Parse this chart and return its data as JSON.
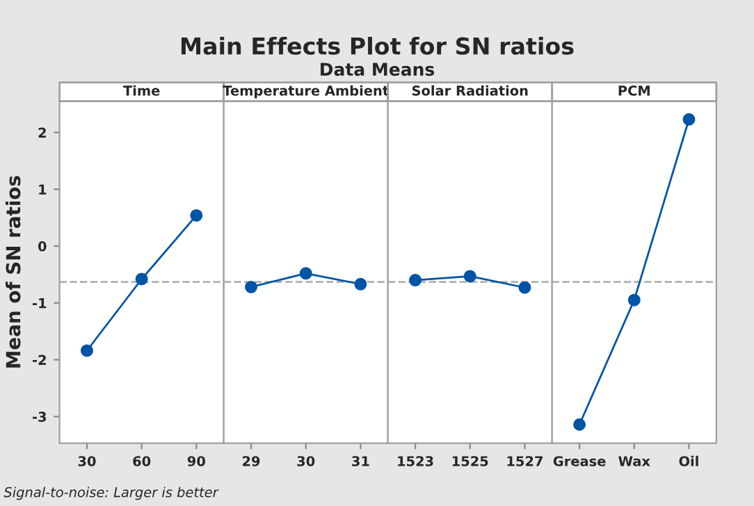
{
  "chart_data": [
    {
      "type": "line",
      "title": "Time",
      "ylabel": "Mean of SN ratios",
      "annotations": [
        "Main Effects Plot for SN ratios",
        "Data Means",
        "Signal-to-noise: Larger is better"
      ],
      "categories": [
        "30",
        "60",
        "90"
      ],
      "series": [
        {
          "color": "#0054a6",
          "values": [
            -1.84,
            -0.58,
            0.54
          ]
        }
      ],
      "ylim": [
        -3.47,
        2.55
      ],
      "yticks": [
        -3,
        -2,
        -1,
        0,
        1,
        2
      ],
      "marker": "circle",
      "line_style": "solid",
      "grid": false,
      "ref_lines": [
        {
          "axis": "y",
          "value": -0.63,
          "color": "#b0b0b0",
          "line_style": "dashed"
        }
      ]
    },
    {
      "type": "line",
      "title": "Temperature Ambient",
      "categories": [
        "29",
        "30",
        "31"
      ],
      "series": [
        {
          "color": "#0054a6",
          "values": [
            -0.72,
            -0.48,
            -0.67
          ]
        }
      ],
      "ylim": [
        -3.47,
        2.55
      ],
      "tick_labels": "x",
      "marker": "circle",
      "line_style": "solid",
      "grid": false,
      "ref_lines": [
        {
          "axis": "y",
          "value": -0.63,
          "color": "#b0b0b0",
          "line_style": "dashed"
        }
      ]
    },
    {
      "type": "line",
      "title": "Solar Radiation",
      "categories": [
        "1523",
        "1525",
        "1527"
      ],
      "series": [
        {
          "color": "#0054a6",
          "values": [
            -0.6,
            -0.53,
            -0.73
          ]
        }
      ],
      "ylim": [
        -3.47,
        2.55
      ],
      "tick_labels": "x",
      "marker": "circle",
      "line_style": "solid",
      "grid": false,
      "ref_lines": [
        {
          "axis": "y",
          "value": -0.63,
          "color": "#b0b0b0",
          "line_style": "dashed"
        }
      ]
    },
    {
      "type": "line",
      "title": "PCM",
      "categories": [
        "Grease",
        "Wax",
        "Oil"
      ],
      "series": [
        {
          "color": "#0054a6",
          "values": [
            -3.14,
            -0.95,
            2.23
          ]
        }
      ],
      "ylim": [
        -3.47,
        2.55
      ],
      "tick_labels": "x",
      "marker": "circle",
      "line_style": "solid",
      "grid": false,
      "ref_lines": [
        {
          "axis": "y",
          "value": -0.63,
          "color": "#b0b0b0",
          "line_style": "dashed"
        }
      ]
    }
  ]
}
